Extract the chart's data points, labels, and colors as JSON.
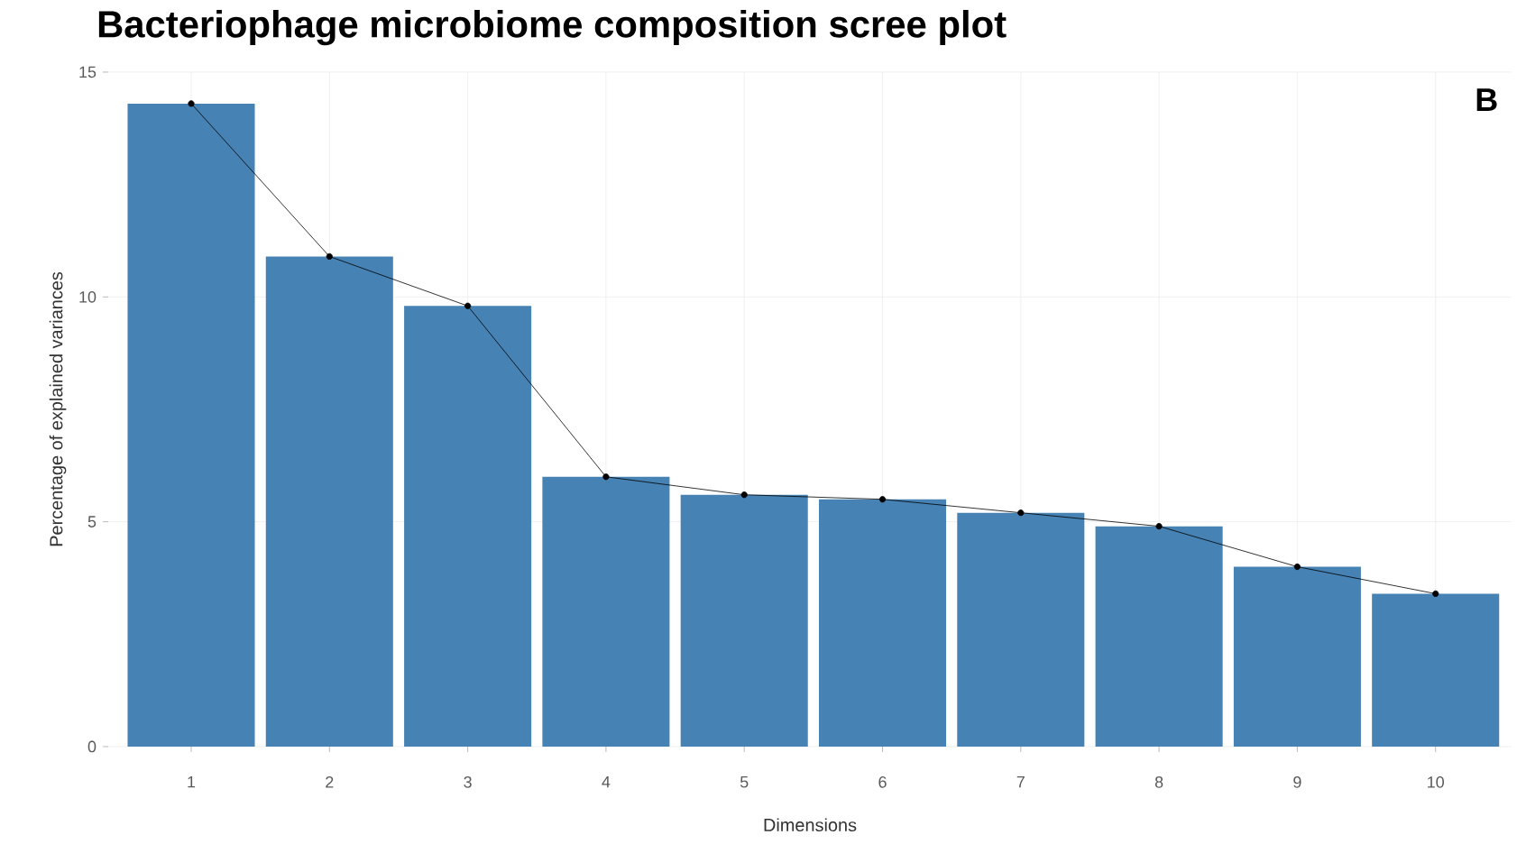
{
  "chart_data": {
    "type": "bar",
    "title": "Bacteriophage microbiome composition scree plot",
    "xlabel": "Dimensions",
    "ylabel": "Percentage of explained variances",
    "categories": [
      "1",
      "2",
      "3",
      "4",
      "5",
      "6",
      "7",
      "8",
      "9",
      "10"
    ],
    "series": [
      {
        "color": "#4682b4",
        "values": [
          14.3,
          10.9,
          9.8,
          6.0,
          5.6,
          5.5,
          5.2,
          4.9,
          4.0,
          3.4
        ]
      },
      {
        "type": "line",
        "color": "#000000",
        "marker": "circle",
        "values": [
          14.3,
          10.9,
          9.8,
          6.0,
          5.6,
          5.5,
          5.2,
          4.9,
          4.0,
          3.4
        ]
      }
    ],
    "ylim": [
      0,
      15
    ],
    "yticks": [
      0,
      5,
      10,
      15
    ],
    "grid": true,
    "annotations": [
      "B"
    ]
  }
}
